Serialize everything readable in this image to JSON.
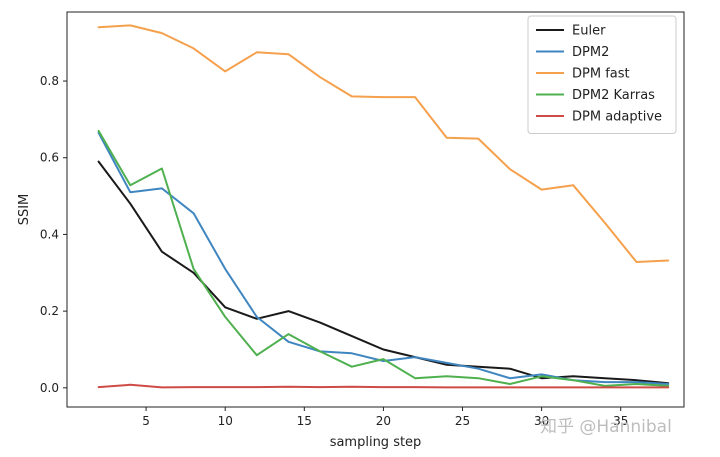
{
  "chart_data": {
    "type": "line",
    "title": "",
    "xlabel": "sampling step",
    "ylabel": "SSIM",
    "xlim": [
      0,
      39
    ],
    "ylim": [
      -0.05,
      0.98
    ],
    "xticks": [
      5,
      10,
      15,
      20,
      25,
      30,
      35
    ],
    "yticks": [
      0.0,
      0.2,
      0.4,
      0.6,
      0.8
    ],
    "ytick_labels": [
      "0.0",
      "0.2",
      "0.4",
      "0.6",
      "0.8"
    ],
    "grid": false,
    "legend_position": "top-right",
    "x": [
      2,
      4,
      6,
      8,
      10,
      12,
      14,
      16,
      18,
      20,
      22,
      24,
      26,
      28,
      30,
      32,
      34,
      36,
      38
    ],
    "series": [
      {
        "name": "Euler",
        "color": "#1a1a1a",
        "values": [
          0.59,
          0.48,
          0.355,
          0.3,
          0.21,
          0.18,
          0.2,
          0.17,
          0.135,
          0.1,
          0.08,
          0.06,
          0.055,
          0.05,
          0.025,
          0.03,
          0.025,
          0.02,
          0.012
        ]
      },
      {
        "name": "DPM2",
        "color": "#3f86c0",
        "values": [
          0.665,
          0.51,
          0.52,
          0.455,
          0.31,
          0.185,
          0.12,
          0.095,
          0.09,
          0.07,
          0.08,
          0.065,
          0.05,
          0.025,
          0.035,
          0.02,
          0.015,
          0.015,
          0.01
        ]
      },
      {
        "name": "DPM fast",
        "color": "#f5a04c",
        "values": [
          0.94,
          0.945,
          0.925,
          0.885,
          0.825,
          0.875,
          0.87,
          0.81,
          0.76,
          0.758,
          0.758,
          0.652,
          0.65,
          0.57,
          0.517,
          0.528,
          0.43,
          0.328,
          0.332
        ]
      },
      {
        "name": "DPM2 Karras",
        "color": "#4fb04f",
        "values": [
          0.67,
          0.528,
          0.572,
          0.31,
          0.185,
          0.085,
          0.14,
          0.095,
          0.055,
          0.075,
          0.025,
          0.03,
          0.025,
          0.01,
          0.03,
          0.02,
          0.005,
          0.01,
          0.005
        ]
      },
      {
        "name": "DPM adaptive",
        "color": "#cf4b46",
        "values": [
          0.002,
          0.008,
          0.001,
          0.002,
          0.002,
          0.002,
          0.003,
          0.002,
          0.003,
          0.002,
          0.002,
          0.001,
          0.001,
          0.001,
          0.001,
          0.001,
          0.001,
          0.001,
          0.001
        ]
      }
    ]
  },
  "watermark": "知乎 @Hannibal"
}
